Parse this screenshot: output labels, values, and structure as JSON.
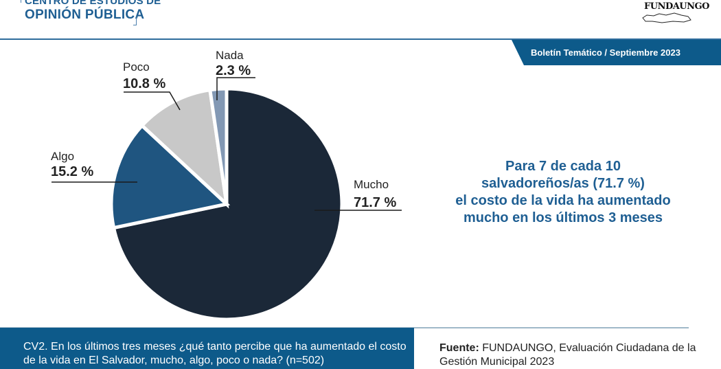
{
  "header": {
    "brand_line1": "CENTRO DE ESTUDIOS DE",
    "brand_line2": "OPINIÓN PÚBLICA",
    "logo_text": "FUNDAUNGO",
    "bulletin": "Boletín Temático / Septiembre 2023"
  },
  "headline": {
    "lines": [
      "Para 7 de cada 10",
      "salvadoreños/as (71.7 %)",
      "el costo de la vida ha aumentado",
      "mucho en los últimos 3 meses"
    ]
  },
  "footer": {
    "question": "CV2. En los últimos tres meses ¿qué tanto percibe que ha aumentado el costo de la vida en El Salvador, mucho, algo, poco o nada? (n=502)",
    "source_label": "Fuente:",
    "source_text": "FUNDAUNGO, Evaluación Ciudadana de la Gestión Municipal 2023"
  },
  "colors": {
    "brand_blue": "#1f5f93",
    "banner_blue": "#0d5a8a"
  },
  "chart_data": {
    "type": "pie",
    "title": "",
    "start": "12 o'clock, clockwise",
    "slices": [
      {
        "label": "Mucho",
        "value": 71.7,
        "display": "71.7 %",
        "color": "#1b2838"
      },
      {
        "label": "Algo",
        "value": 15.2,
        "display": "15.2 %",
        "color": "#1f5580"
      },
      {
        "label": "Poco",
        "value": 10.8,
        "display": "10.8 %",
        "color": "#c8c8c8"
      },
      {
        "label": "Nada",
        "value": 2.3,
        "display": "2.3 %",
        "color": "#8298b4"
      }
    ],
    "unit": "%"
  }
}
